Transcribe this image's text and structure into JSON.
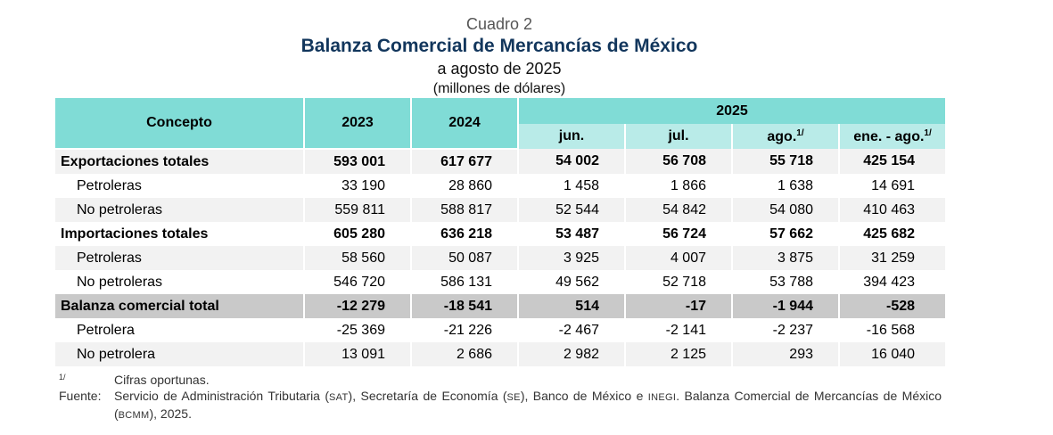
{
  "caption": {
    "number": "Cuadro 2",
    "title": "Balanza Comercial de Mercancías de México",
    "subtitle": "a agosto de 2025",
    "units": "(millones de dólares)"
  },
  "header": {
    "concept": "Concepto",
    "year1": "2023",
    "year2": "2024",
    "group": "2025",
    "months": [
      {
        "label": "jun.",
        "note": ""
      },
      {
        "label": "jul.",
        "note": ""
      },
      {
        "label": "ago.",
        "note": "1/"
      },
      {
        "label": "ene. - ago.",
        "note": "1/"
      }
    ]
  },
  "rows": [
    {
      "label": "Exportaciones totales",
      "values": [
        "593 001",
        "617 677",
        "54 002",
        "56 708",
        "55 718",
        "425 154"
      ]
    },
    {
      "label": "Petroleras",
      "values": [
        "33 190",
        "28 860",
        "1 458",
        "1 866",
        "1 638",
        "14 691"
      ]
    },
    {
      "label": "No petroleras",
      "values": [
        "559 811",
        "588 817",
        "52 544",
        "54 842",
        "54 080",
        "410 463"
      ]
    },
    {
      "label": "Importaciones totales",
      "values": [
        "605 280",
        "636 218",
        "53 487",
        "56 724",
        "57 662",
        "425 682"
      ]
    },
    {
      "label": "Petroleras",
      "values": [
        "58 560",
        "50 087",
        "3 925",
        "4 007",
        "3 875",
        "31 259"
      ]
    },
    {
      "label": "No petroleras",
      "values": [
        "546 720",
        "586 131",
        "49 562",
        "52 718",
        "53 788",
        "394 423"
      ]
    },
    {
      "label": "Balanza comercial total",
      "values": [
        "-12 279",
        "-18 541",
        "514",
        "-17",
        "-1 944",
        "-528"
      ]
    },
    {
      "label": "Petrolera",
      "values": [
        "-25 369",
        "-21 226",
        "-2 467",
        "-2 141",
        "-2 237",
        "-16 568"
      ]
    },
    {
      "label": "No petrolera",
      "values": [
        "13 091",
        "2 686",
        "2 982",
        "2 125",
        "293",
        "16 040"
      ]
    }
  ],
  "notes": {
    "footnote_key": "1/",
    "footnote_text": "Cifras oportunas.",
    "source_key": "Fuente:",
    "source_parts": {
      "a": "Servicio de Administración Tributaria (",
      "sat": "SAT",
      "b": "), Secretaría de Economía (",
      "se": "SE",
      "c": "), Banco de México e ",
      "inegi": "INEGI",
      "d": ". Balanza Comercial de Mercancías de México (",
      "bcmm": "BCMM",
      "e": "), 2025."
    }
  }
}
